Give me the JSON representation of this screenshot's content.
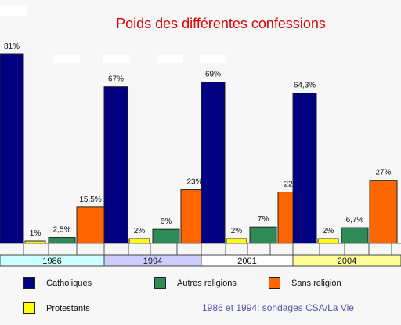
{
  "chart_data": {
    "type": "bar",
    "title": "Poids des différentes confessions",
    "categories": [
      "1986",
      "1994",
      "2001",
      "2004"
    ],
    "ylim": [
      0,
      81
    ],
    "series": [
      {
        "name": "Catholiques",
        "color": "#000080",
        "values": [
          81,
          67,
          69,
          64.3
        ],
        "labels": [
          "81%",
          "67%",
          "69%",
          "64,3%"
        ]
      },
      {
        "name": "Protestants",
        "color": "#ffff00",
        "values": [
          1,
          2,
          2,
          2
        ],
        "labels": [
          "1%",
          "2%",
          "2%",
          "2%"
        ]
      },
      {
        "name": "Autres religions",
        "color": "#2e8b57",
        "values": [
          2.5,
          6,
          7,
          6.7
        ],
        "labels": [
          "2,5%",
          "6%",
          "7%",
          "6,7%"
        ]
      },
      {
        "name": "Sans religion",
        "color": "#ff6600",
        "values": [
          15.5,
          23,
          22,
          27
        ],
        "labels": [
          "15,5%",
          "23%",
          "22%",
          "27%"
        ]
      }
    ],
    "year_band_colors": [
      "#ccffff",
      "#ccccff",
      "#ffffff",
      "#ffff99"
    ],
    "title_color": "#dd0000",
    "source_color": "#5555aa",
    "source_note": "1986 et 1994: sondages CSA/La Vie",
    "legend_placement": "bottom"
  }
}
